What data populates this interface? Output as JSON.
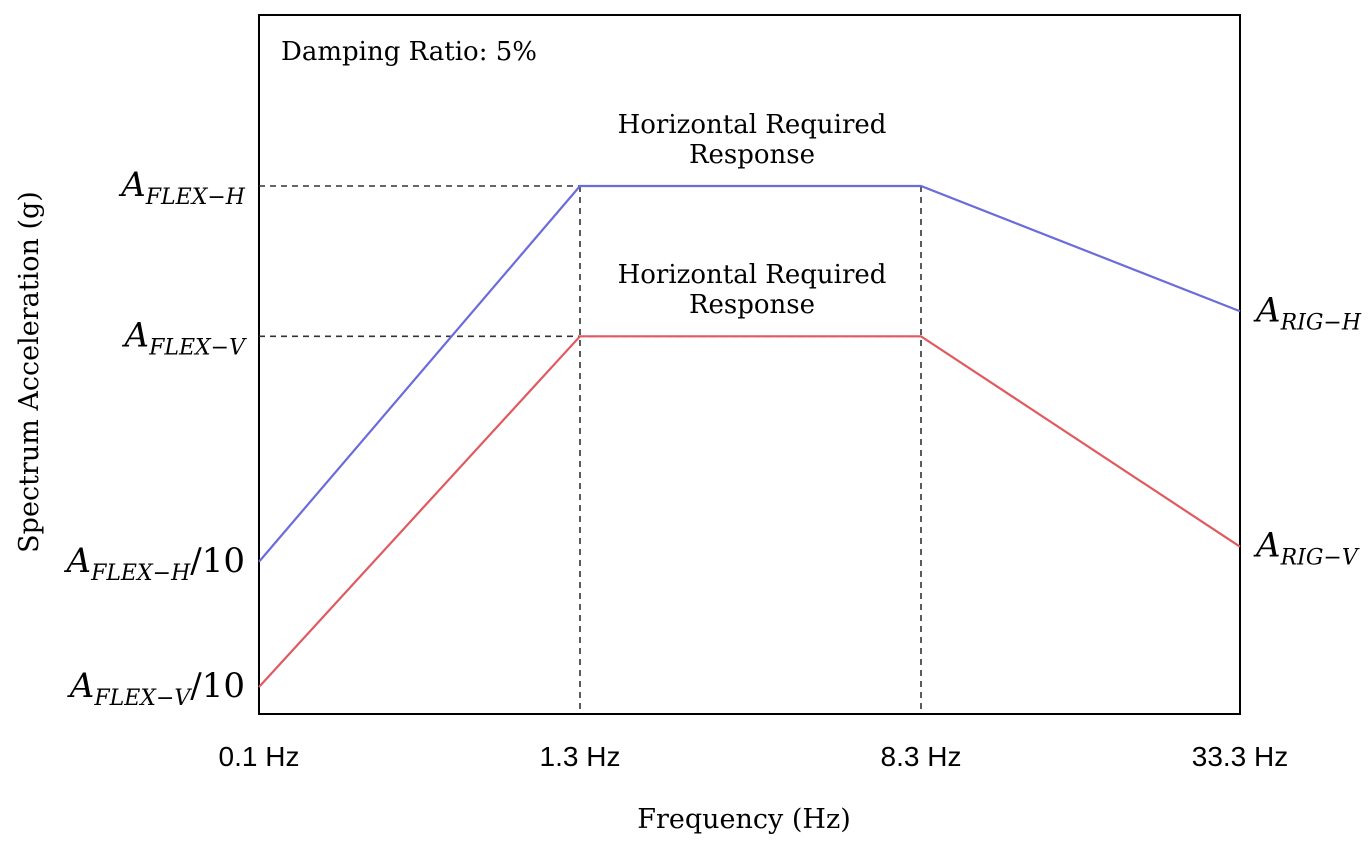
{
  "chart_data": {
    "type": "line",
    "annotation": "Damping Ratio: 5%",
    "xlabel": "Frequency (Hz)",
    "ylabel": "Spectrum Acceleration (g)",
    "x_tick_labels": [
      "0.1 Hz",
      "1.3 Hz",
      "8.3 Hz",
      "33.3 Hz"
    ],
    "x_index": [
      0,
      1,
      2,
      3
    ],
    "y_levels": {
      "flex_h": 1.0,
      "flex_v": 0.7,
      "rig_h": 0.75,
      "rig_v": 0.28,
      "flex_h_10": 0.25,
      "flex_v_10": 0.0
    },
    "left_labels": [
      {
        "key": "flex_h",
        "base": "A",
        "sub": "FLEX−H",
        "suffix": ""
      },
      {
        "key": "flex_v",
        "base": "A",
        "sub": "FLEX−V",
        "suffix": ""
      },
      {
        "key": "flex_h_10",
        "base": "A",
        "sub": "FLEX−H",
        "suffix": "/10"
      },
      {
        "key": "flex_v_10",
        "base": "A",
        "sub": "FLEX−V",
        "suffix": "/10"
      }
    ],
    "right_labels": [
      {
        "key": "rig_h",
        "base": "A",
        "sub": "RIG−H"
      },
      {
        "key": "rig_v",
        "base": "A",
        "sub": "RIG−V"
      }
    ],
    "series": [
      {
        "name": "Horizontal Required Response",
        "label_lines": [
          "Horizontal Required",
          "Response"
        ],
        "color": "#6b6bdc",
        "points": [
          [
            0,
            0.25
          ],
          [
            1,
            1.0
          ],
          [
            2,
            1.0
          ],
          [
            3,
            0.75
          ]
        ]
      },
      {
        "name": "Horizontal Required Response",
        "label_lines": [
          "Horizontal Required",
          "Response"
        ],
        "color": "#e05a5f",
        "points": [
          [
            0,
            0.0
          ],
          [
            1,
            0.7
          ],
          [
            2,
            0.7
          ],
          [
            3,
            0.28
          ]
        ]
      }
    ]
  }
}
